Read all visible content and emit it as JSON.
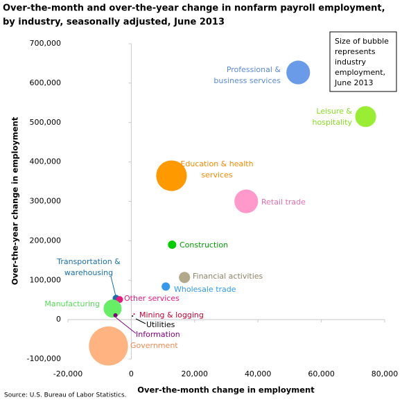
{
  "chart_data": {
    "type": "bubble",
    "title": [
      "Over-the-month and over-the-year change in nonfarm payroll employment,",
      "by industry, seasonally adjusted, June 2013"
    ],
    "x_label": "Over-the-month change in employment",
    "y_label": "Over-the-year change in employment",
    "annotation": [
      "Size of bubble",
      "represents",
      "industry",
      "employment,",
      "June 2013"
    ],
    "source": "Source: U.S. Bureau of Labor Statistics.",
    "xlim": [
      -20000,
      80000
    ],
    "xticks": [
      {
        "value": -20000,
        "label": "-20,000"
      },
      0,
      {
        "value": 20000,
        "label": "20,000"
      },
      {
        "value": 40000,
        "label": "40,000"
      },
      {
        "value": 60000,
        "label": "60,000"
      },
      {
        "value": 80000,
        "label": "80,000"
      }
    ],
    "ylim": [
      -100000,
      700000
    ],
    "yticks": [
      {
        "value": -100000,
        "label": "-100,000"
      },
      0,
      {
        "value": 100000,
        "label": "100,000"
      },
      {
        "value": 200000,
        "label": "200,000"
      },
      {
        "value": 300000,
        "label": "300,000"
      },
      {
        "value": 400000,
        "label": "400,000"
      },
      {
        "value": 500000,
        "label": "500,000"
      },
      {
        "value": 600000,
        "label": "600,000"
      },
      {
        "value": 700000,
        "label": "700,000"
      }
    ],
    "series": [
      {
        "name": [
          "Professional &",
          "business services"
        ],
        "color": "#6a9be8",
        "values": [
          52700,
          627000,
          8100
        ]
      },
      {
        "name": [
          "Leisure &",
          "hospitality"
        ],
        "color": "#99ee33",
        "values": [
          74000,
          515000,
          6300
        ]
      },
      {
        "name": [
          "Education & health",
          "services"
        ],
        "color": "#ff9900",
        "values": [
          12700,
          365000,
          13500
        ]
      },
      {
        "name": [
          "Retail trade"
        ],
        "color": "#ff99cc",
        "values": [
          36300,
          300000,
          8100
        ]
      },
      {
        "name": [
          "Construction"
        ],
        "color": "#00cc00",
        "values": [
          12900,
          190000,
          1000
        ]
      },
      {
        "name": [
          "Financial activities"
        ],
        "color": "#b3a98a",
        "values": [
          16800,
          107000,
          1800
        ]
      },
      {
        "name": [
          "Wholesale trade"
        ],
        "color": "#3399ee",
        "values": [
          10900,
          84000,
          1000
        ]
      },
      {
        "name": [
          "Transportation &",
          "warehousing"
        ],
        "color": "#1a6fa8",
        "values": [
          -4800,
          54000,
          700
        ]
      },
      {
        "name": [
          "Other services"
        ],
        "color": "#e6197f",
        "values": [
          -3700,
          51000,
          700
        ]
      },
      {
        "name": [
          "Manufacturing"
        ],
        "color": "#66ee66",
        "values": [
          -5900,
          28000,
          4700
        ]
      },
      {
        "name": [
          "Mining & logging"
        ],
        "color": "#cc0033",
        "values": [
          900,
          14000,
          30
        ]
      },
      {
        "name": [
          "Utilities"
        ],
        "color": "#000000",
        "values": [
          400,
          9000,
          30
        ]
      },
      {
        "name": [
          "Information"
        ],
        "color": "#800080",
        "values": [
          -5000,
          11000,
          250
        ]
      },
      {
        "name": [
          "Government"
        ],
        "color": "#ffb380",
        "values": [
          -7200,
          -67000,
          22000
        ]
      }
    ]
  }
}
